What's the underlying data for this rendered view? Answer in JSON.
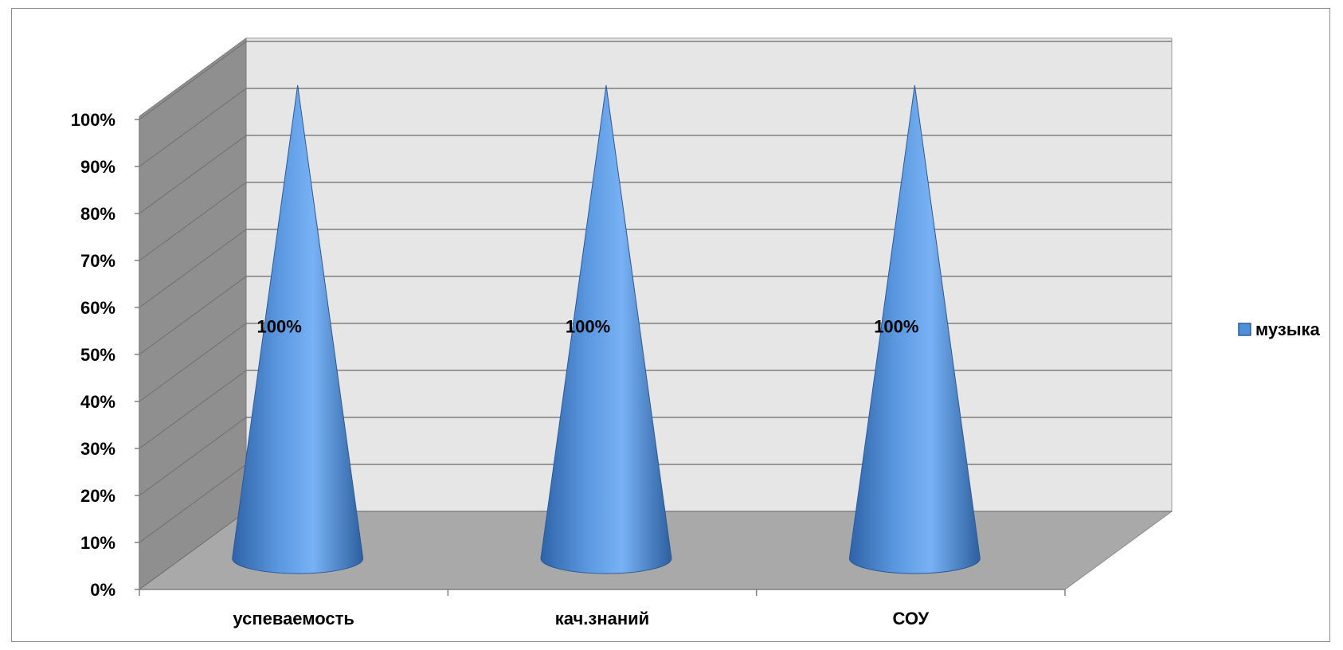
{
  "chart_data": {
    "type": "bar",
    "shape": "cone-3d",
    "categories": [
      "успеваемость",
      "кач.знаний",
      "СОУ"
    ],
    "series": [
      {
        "name": "музыка",
        "values": [
          100,
          100,
          100
        ],
        "color": "#4f8ed8"
      }
    ],
    "data_labels": [
      "100%",
      "100%",
      "100%"
    ],
    "y_ticks": [
      "0%",
      "10%",
      "20%",
      "30%",
      "40%",
      "50%",
      "60%",
      "70%",
      "80%",
      "90%",
      "100%"
    ],
    "ylim": [
      0,
      100
    ],
    "y_unit": "%",
    "grid": true,
    "legend": {
      "placement": "right",
      "label": "музыка"
    },
    "colors": {
      "back_wall": "#e6e6e6",
      "side_wall": "#8f8f8f",
      "floor": "#a9a9a9",
      "gridline": "#7f7f7f",
      "series": "#4f8ed8"
    }
  }
}
